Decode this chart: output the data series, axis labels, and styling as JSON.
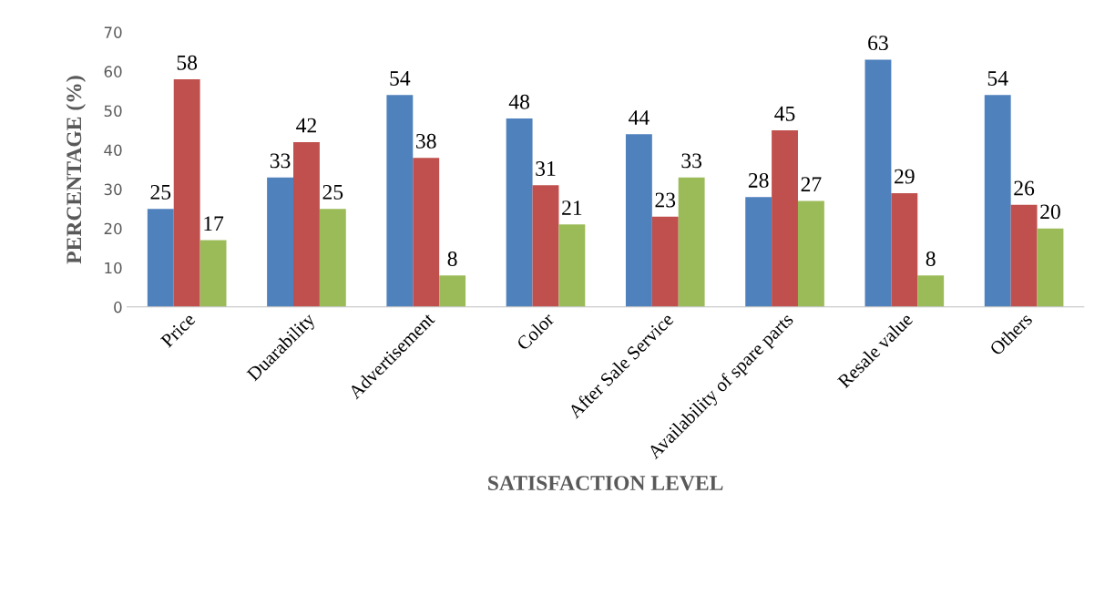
{
  "chart_data": {
    "type": "bar",
    "xlabel": "SATISFACTION LEVEL",
    "ylabel": "PERCENTAGE (%)",
    "categories": [
      "Price",
      "Duarability",
      "Advertisement",
      "Color",
      "After Sale Service",
      "Availability of spare parts",
      "Resale value",
      "Others"
    ],
    "series": [
      {
        "color": "#4f81bd",
        "values": [
          25,
          33,
          54,
          48,
          44,
          28,
          63,
          54
        ]
      },
      {
        "color": "#c0504d",
        "values": [
          58,
          42,
          38,
          31,
          23,
          45,
          29,
          26
        ]
      },
      {
        "color": "#9bbb59",
        "values": [
          17,
          25,
          8,
          21,
          33,
          27,
          8,
          20
        ]
      }
    ],
    "ylim": [
      0,
      70
    ],
    "yticks": [
      0,
      10,
      20,
      30,
      40,
      50,
      60,
      70
    ],
    "grid": false,
    "legend": false,
    "data_labels": true
  }
}
